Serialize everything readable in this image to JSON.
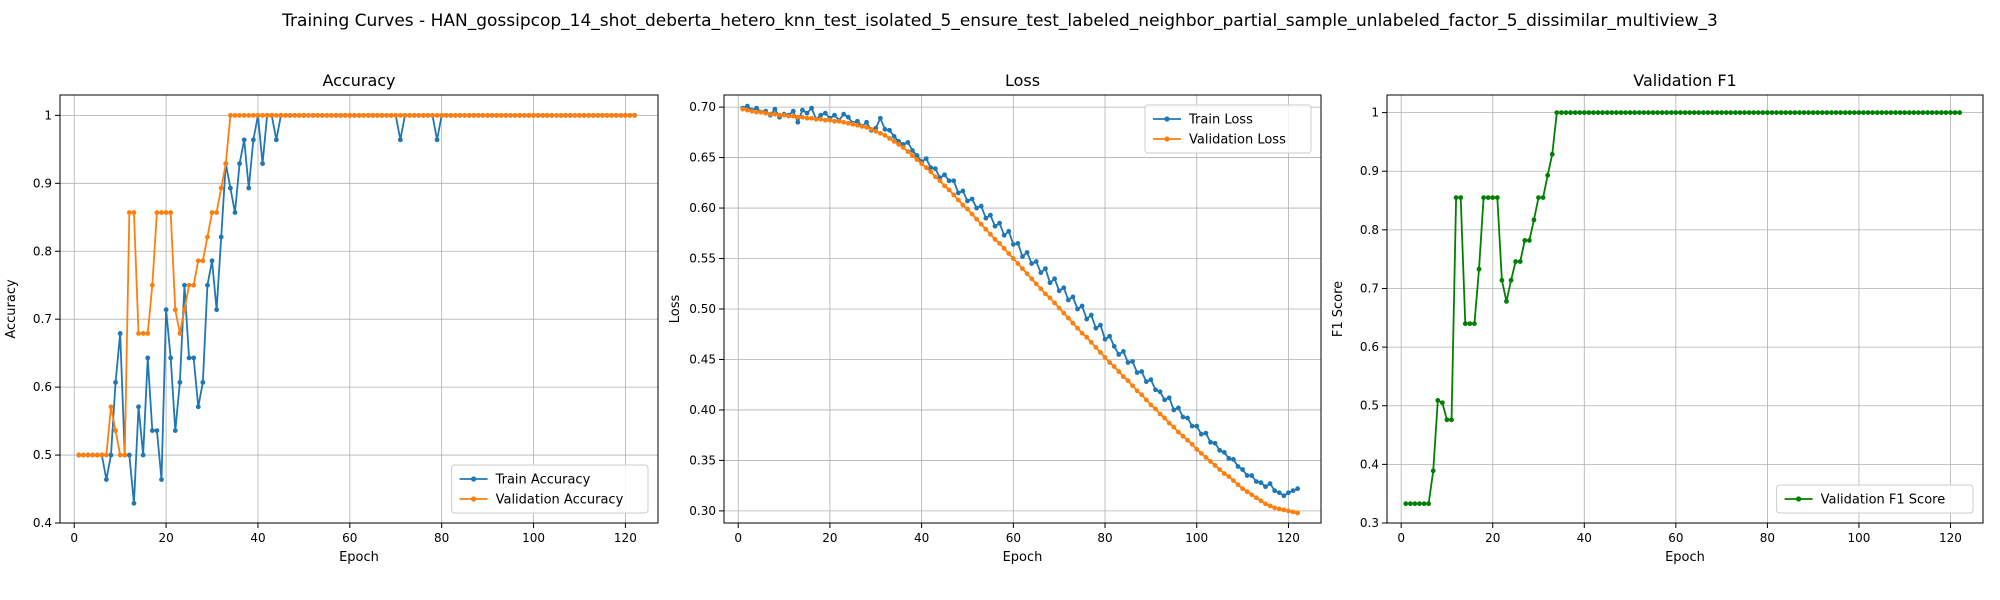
{
  "figure": {
    "suptitle": "Training Curves - HAN_gossipcop_14_shot_deberta_hetero_knn_test_isolated_5_ensure_test_labeled_neighbor_partial_sample_unlabeled_factor_5_dissimilar_multiview_3"
  },
  "colors": {
    "blue": "#1f77b4",
    "orange": "#ff7f0e",
    "green": "#008000"
  },
  "chart_data": [
    {
      "type": "line",
      "title": "Accuracy",
      "xlabel": "Epoch",
      "ylabel": "Accuracy",
      "xlim": [
        -3.1,
        127.1
      ],
      "ylim": [
        0.4,
        1.03
      ],
      "xticks": [
        0,
        20,
        40,
        60,
        80,
        100,
        120
      ],
      "yticks": [
        0.4,
        0.5,
        0.6,
        0.7,
        0.8,
        0.9,
        1.0
      ],
      "grid": true,
      "legend": "lower-right",
      "series": [
        {
          "name": "Train Accuracy",
          "color": "#1f77b4",
          "x_start": 1,
          "values": [
            0.5,
            0.5,
            0.5,
            0.5,
            0.5,
            0.5,
            0.464,
            0.5,
            0.607,
            0.679,
            0.5,
            0.5,
            0.429,
            0.571,
            0.5,
            0.643,
            0.536,
            0.536,
            0.464,
            0.714,
            0.643,
            0.536,
            0.607,
            0.75,
            0.643,
            0.643,
            0.571,
            0.607,
            0.75,
            0.786,
            0.714,
            0.821,
            0.929,
            0.893,
            0.857,
            0.929,
            0.964,
            0.893,
            0.964,
            1.0,
            0.929,
            1.0,
            1.0,
            0.964,
            1.0,
            1.0,
            1.0,
            1.0,
            1.0,
            1.0,
            1.0,
            1.0,
            1.0,
            1.0,
            1.0,
            1.0,
            1.0,
            1.0,
            1.0,
            1.0,
            1.0,
            1.0,
            1.0,
            1.0,
            1.0,
            1.0,
            1.0,
            1.0,
            1.0,
            1.0,
            0.964,
            1.0,
            1.0,
            1.0,
            1.0,
            1.0,
            1.0,
            1.0,
            0.964,
            1.0,
            1.0,
            1.0,
            1.0,
            1.0,
            1.0,
            1.0,
            1.0,
            1.0,
            1.0,
            1.0,
            1.0,
            1.0,
            1.0,
            1.0,
            1.0,
            1.0,
            1.0,
            1.0,
            1.0,
            1.0,
            1.0,
            1.0,
            1.0,
            1.0,
            1.0,
            1.0,
            1.0,
            1.0,
            1.0,
            1.0,
            1.0,
            1.0,
            1.0,
            1.0,
            1.0,
            1.0,
            1.0,
            1.0,
            1.0,
            1.0,
            1.0,
            1.0
          ]
        },
        {
          "name": "Validation Accuracy",
          "color": "#ff7f0e",
          "x_start": 1,
          "values": [
            0.5,
            0.5,
            0.5,
            0.5,
            0.5,
            0.5,
            0.5,
            0.571,
            0.536,
            0.5,
            0.5,
            0.857,
            0.857,
            0.679,
            0.679,
            0.679,
            0.75,
            0.857,
            0.857,
            0.857,
            0.857,
            0.714,
            0.679,
            0.714,
            0.75,
            0.75,
            0.786,
            0.786,
            0.821,
            0.857,
            0.857,
            0.893,
            0.929,
            1.0,
            1.0,
            1.0,
            1.0,
            1.0,
            1.0,
            1.0,
            1.0,
            1.0,
            1.0,
            1.0,
            1.0,
            1.0,
            1.0,
            1.0,
            1.0,
            1.0,
            1.0,
            1.0,
            1.0,
            1.0,
            1.0,
            1.0,
            1.0,
            1.0,
            1.0,
            1.0,
            1.0,
            1.0,
            1.0,
            1.0,
            1.0,
            1.0,
            1.0,
            1.0,
            1.0,
            1.0,
            1.0,
            1.0,
            1.0,
            1.0,
            1.0,
            1.0,
            1.0,
            1.0,
            1.0,
            1.0,
            1.0,
            1.0,
            1.0,
            1.0,
            1.0,
            1.0,
            1.0,
            1.0,
            1.0,
            1.0,
            1.0,
            1.0,
            1.0,
            1.0,
            1.0,
            1.0,
            1.0,
            1.0,
            1.0,
            1.0,
            1.0,
            1.0,
            1.0,
            1.0,
            1.0,
            1.0,
            1.0,
            1.0,
            1.0,
            1.0,
            1.0,
            1.0,
            1.0,
            1.0,
            1.0,
            1.0,
            1.0,
            1.0,
            1.0,
            1.0,
            1.0,
            1.0
          ]
        }
      ]
    },
    {
      "type": "line",
      "title": "Loss",
      "xlabel": "Epoch",
      "ylabel": "Loss",
      "xlim": [
        -3.1,
        127.1
      ],
      "ylim": [
        0.288,
        0.712
      ],
      "xticks": [
        0,
        20,
        40,
        60,
        80,
        100,
        120
      ],
      "yticks": [
        0.3,
        0.35,
        0.4,
        0.45,
        0.5,
        0.55,
        0.6,
        0.65,
        0.7
      ],
      "ytick_labels": [
        "0.30",
        "0.35",
        "0.40",
        "0.45",
        "0.50",
        "0.55",
        "0.60",
        "0.65",
        "0.70"
      ],
      "grid": true,
      "legend": "upper-right",
      "series": [
        {
          "name": "Train Loss",
          "color": "#1f77b4",
          "x_start": 1,
          "values": [
            0.699,
            0.701,
            0.697,
            0.699,
            0.695,
            0.696,
            0.692,
            0.698,
            0.69,
            0.693,
            0.692,
            0.696,
            0.685,
            0.697,
            0.694,
            0.699,
            0.688,
            0.692,
            0.694,
            0.689,
            0.692,
            0.687,
            0.693,
            0.69,
            0.684,
            0.686,
            0.681,
            0.685,
            0.677,
            0.679,
            0.689,
            0.678,
            0.677,
            0.671,
            0.666,
            0.663,
            0.665,
            0.657,
            0.652,
            0.646,
            0.649,
            0.64,
            0.639,
            0.63,
            0.633,
            0.627,
            0.627,
            0.615,
            0.617,
            0.607,
            0.609,
            0.6,
            0.602,
            0.59,
            0.593,
            0.582,
            0.585,
            0.573,
            0.577,
            0.564,
            0.565,
            0.552,
            0.556,
            0.545,
            0.547,
            0.536,
            0.54,
            0.526,
            0.53,
            0.518,
            0.521,
            0.509,
            0.512,
            0.5,
            0.503,
            0.49,
            0.494,
            0.481,
            0.484,
            0.47,
            0.473,
            0.463,
            0.455,
            0.458,
            0.447,
            0.448,
            0.437,
            0.438,
            0.428,
            0.43,
            0.42,
            0.418,
            0.41,
            0.412,
            0.4,
            0.402,
            0.393,
            0.392,
            0.384,
            0.384,
            0.376,
            0.377,
            0.368,
            0.367,
            0.36,
            0.358,
            0.352,
            0.351,
            0.344,
            0.341,
            0.335,
            0.335,
            0.329,
            0.328,
            0.324,
            0.327,
            0.32,
            0.318,
            0.315,
            0.318,
            0.32,
            0.322
          ]
        },
        {
          "name": "Validation Loss",
          "color": "#ff7f0e",
          "x_start": 1,
          "values": [
            0.698,
            0.697,
            0.696,
            0.695,
            0.695,
            0.694,
            0.693,
            0.693,
            0.692,
            0.692,
            0.691,
            0.691,
            0.69,
            0.69,
            0.689,
            0.689,
            0.688,
            0.688,
            0.687,
            0.687,
            0.686,
            0.686,
            0.685,
            0.684,
            0.683,
            0.682,
            0.681,
            0.68,
            0.678,
            0.676,
            0.674,
            0.672,
            0.669,
            0.666,
            0.663,
            0.66,
            0.656,
            0.652,
            0.648,
            0.644,
            0.64,
            0.636,
            0.631,
            0.627,
            0.622,
            0.618,
            0.613,
            0.608,
            0.603,
            0.599,
            0.594,
            0.589,
            0.584,
            0.579,
            0.574,
            0.569,
            0.565,
            0.56,
            0.555,
            0.55,
            0.545,
            0.54,
            0.535,
            0.53,
            0.525,
            0.52,
            0.515,
            0.511,
            0.506,
            0.501,
            0.496,
            0.491,
            0.486,
            0.481,
            0.476,
            0.472,
            0.467,
            0.462,
            0.457,
            0.452,
            0.447,
            0.443,
            0.438,
            0.433,
            0.429,
            0.424,
            0.419,
            0.415,
            0.41,
            0.405,
            0.401,
            0.396,
            0.392,
            0.387,
            0.383,
            0.378,
            0.374,
            0.37,
            0.366,
            0.361,
            0.357,
            0.353,
            0.349,
            0.345,
            0.341,
            0.337,
            0.334,
            0.33,
            0.326,
            0.322,
            0.319,
            0.316,
            0.313,
            0.31,
            0.307,
            0.305,
            0.303,
            0.302,
            0.301,
            0.3,
            0.299,
            0.298
          ]
        }
      ]
    },
    {
      "type": "line",
      "title": "Validation F1",
      "xlabel": "Epoch",
      "ylabel": "F1 Score",
      "xlim": [
        -3.1,
        127.1
      ],
      "ylim": [
        0.3,
        1.03
      ],
      "xticks": [
        0,
        20,
        40,
        60,
        80,
        100,
        120
      ],
      "yticks": [
        0.3,
        0.4,
        0.5,
        0.6,
        0.7,
        0.8,
        0.9,
        1.0
      ],
      "grid": true,
      "legend": "lower-right",
      "series": [
        {
          "name": "Validation F1 Score",
          "color": "#008000",
          "x_start": 1,
          "values": [
            0.333,
            0.333,
            0.333,
            0.333,
            0.333,
            0.333,
            0.389,
            0.509,
            0.505,
            0.476,
            0.476,
            0.855,
            0.855,
            0.64,
            0.64,
            0.64,
            0.733,
            0.855,
            0.855,
            0.855,
            0.855,
            0.714,
            0.678,
            0.714,
            0.746,
            0.746,
            0.782,
            0.782,
            0.817,
            0.855,
            0.855,
            0.893,
            0.929,
            1.0,
            1.0,
            1.0,
            1.0,
            1.0,
            1.0,
            1.0,
            1.0,
            1.0,
            1.0,
            1.0,
            1.0,
            1.0,
            1.0,
            1.0,
            1.0,
            1.0,
            1.0,
            1.0,
            1.0,
            1.0,
            1.0,
            1.0,
            1.0,
            1.0,
            1.0,
            1.0,
            1.0,
            1.0,
            1.0,
            1.0,
            1.0,
            1.0,
            1.0,
            1.0,
            1.0,
            1.0,
            1.0,
            1.0,
            1.0,
            1.0,
            1.0,
            1.0,
            1.0,
            1.0,
            1.0,
            1.0,
            1.0,
            1.0,
            1.0,
            1.0,
            1.0,
            1.0,
            1.0,
            1.0,
            1.0,
            1.0,
            1.0,
            1.0,
            1.0,
            1.0,
            1.0,
            1.0,
            1.0,
            1.0,
            1.0,
            1.0,
            1.0,
            1.0,
            1.0,
            1.0,
            1.0,
            1.0,
            1.0,
            1.0,
            1.0,
            1.0,
            1.0,
            1.0,
            1.0,
            1.0,
            1.0,
            1.0,
            1.0,
            1.0,
            1.0,
            1.0,
            1.0,
            1.0
          ]
        }
      ]
    }
  ]
}
